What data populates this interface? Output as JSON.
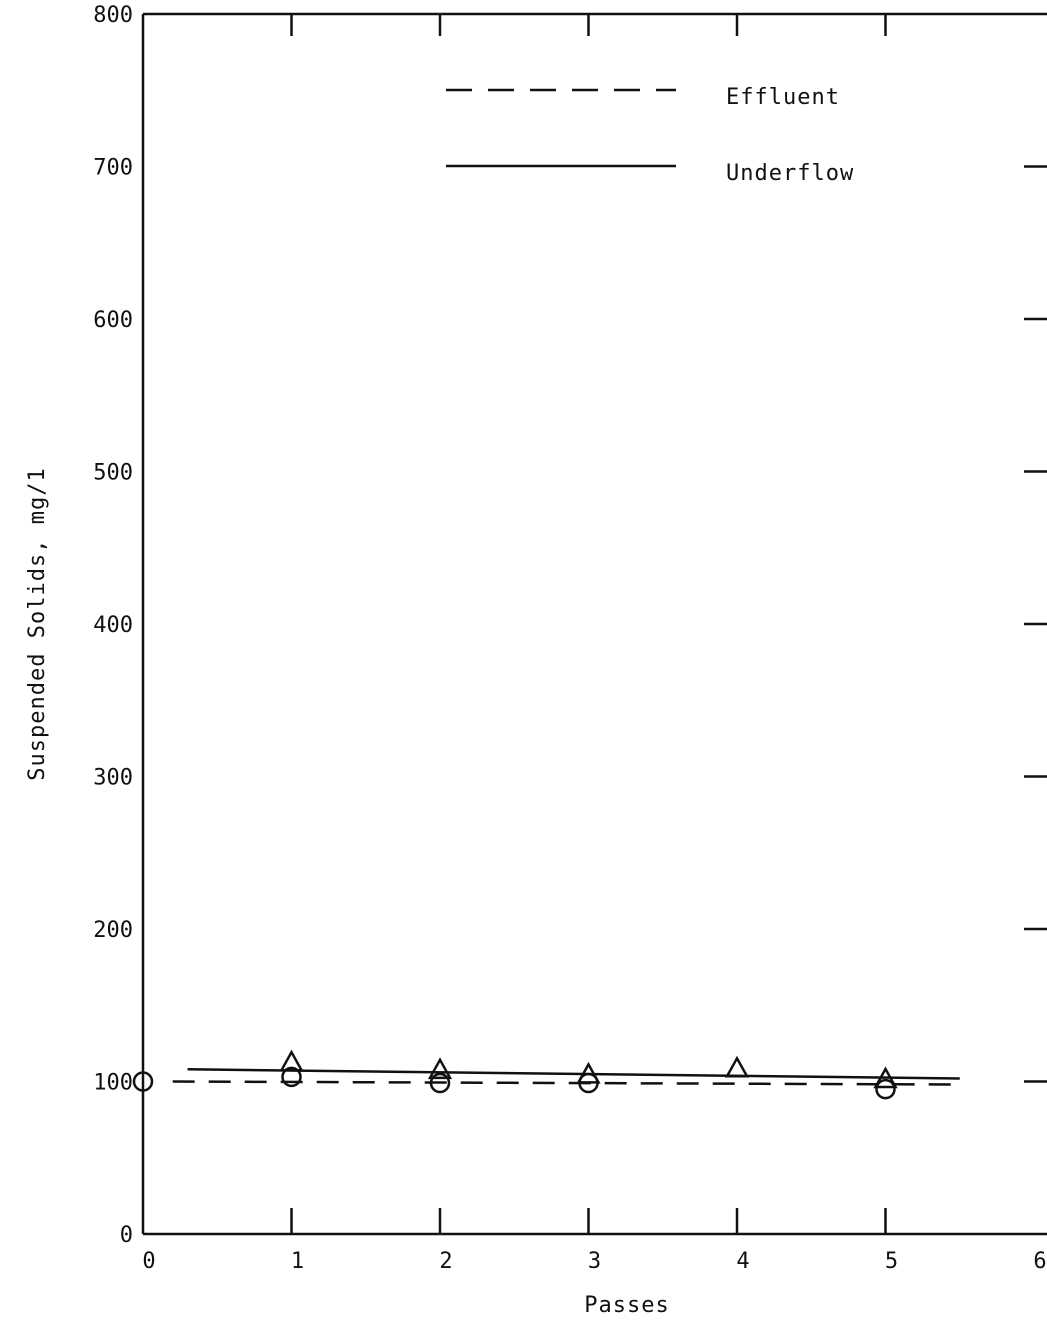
{
  "chart_data": {
    "type": "line",
    "title": "",
    "xlabel": "Passes",
    "ylabel": "Suspended Solids, mg/1",
    "xlim": [
      0,
      6
    ],
    "ylim": [
      0,
      800
    ],
    "x_ticks": [
      "0",
      "1",
      "2",
      "3",
      "4",
      "5",
      "6"
    ],
    "y_ticks": [
      "0",
      "100",
      "200",
      "300",
      "400",
      "500",
      "600",
      "700",
      "800"
    ],
    "grid": false,
    "legend_position": "top-center",
    "series": [
      {
        "name": "Effluent",
        "line_style": "dashed",
        "marker": "circle",
        "points": [
          {
            "x": 0,
            "y": 100
          },
          {
            "x": 1,
            "y": 103
          },
          {
            "x": 2,
            "y": 99
          },
          {
            "x": 3,
            "y": 99
          },
          {
            "x": 5,
            "y": 95
          }
        ],
        "fit_line": {
          "x": [
            0.2,
            5.5
          ],
          "y": [
            100,
            98
          ]
        }
      },
      {
        "name": "Underflow",
        "line_style": "solid",
        "marker": "triangle",
        "points": [
          {
            "x": 1,
            "y": 112
          },
          {
            "x": 2,
            "y": 107
          },
          {
            "x": 3,
            "y": 104
          },
          {
            "x": 4,
            "y": 108
          },
          {
            "x": 5,
            "y": 101
          }
        ],
        "fit_line": {
          "x": [
            0.3,
            5.5
          ],
          "y": [
            108,
            102
          ]
        }
      }
    ],
    "colors": {
      "ink": "#111111",
      "background": "#ffffff"
    }
  }
}
